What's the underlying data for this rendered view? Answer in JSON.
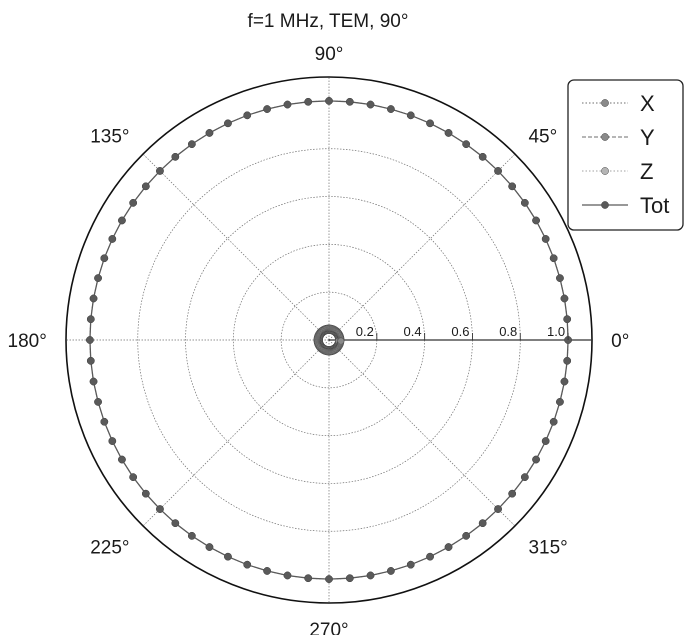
{
  "chart_data": {
    "type": "polar-line",
    "title": "f=1 MHz, TEM, 90°",
    "angle_ticks": [
      "0°",
      "45°",
      "90°",
      "135°",
      "180°",
      "225°",
      "270°",
      "315°"
    ],
    "angle_tick_values": [
      0,
      45,
      90,
      135,
      180,
      225,
      270,
      315
    ],
    "radial_ticks": [
      "0.2",
      "0.4",
      "0.6",
      "0.8",
      "1.0"
    ],
    "radial_tick_values": [
      0.2,
      0.4,
      0.6,
      0.8,
      1.0
    ],
    "rlim": [
      0,
      1.1
    ],
    "grid": true,
    "legend_position": "top-right",
    "series": [
      {
        "name": "X",
        "color": "#8a8a8a",
        "marker": "circle",
        "line": "dotted",
        "r_constant": 0.04
      },
      {
        "name": "Y",
        "color": "#8a8a8a",
        "marker": "circle",
        "line": "dashed",
        "r_constant": 0.05
      },
      {
        "name": "Z",
        "color": "#b5b5b5",
        "marker": "circle",
        "line": "dotted",
        "r_constant": 1.0
      },
      {
        "name": "Tot",
        "color": "#5a5a5a",
        "marker": "circle",
        "line": "solid",
        "r_constant": 1.0
      }
    ],
    "angle_step_deg": 5
  }
}
